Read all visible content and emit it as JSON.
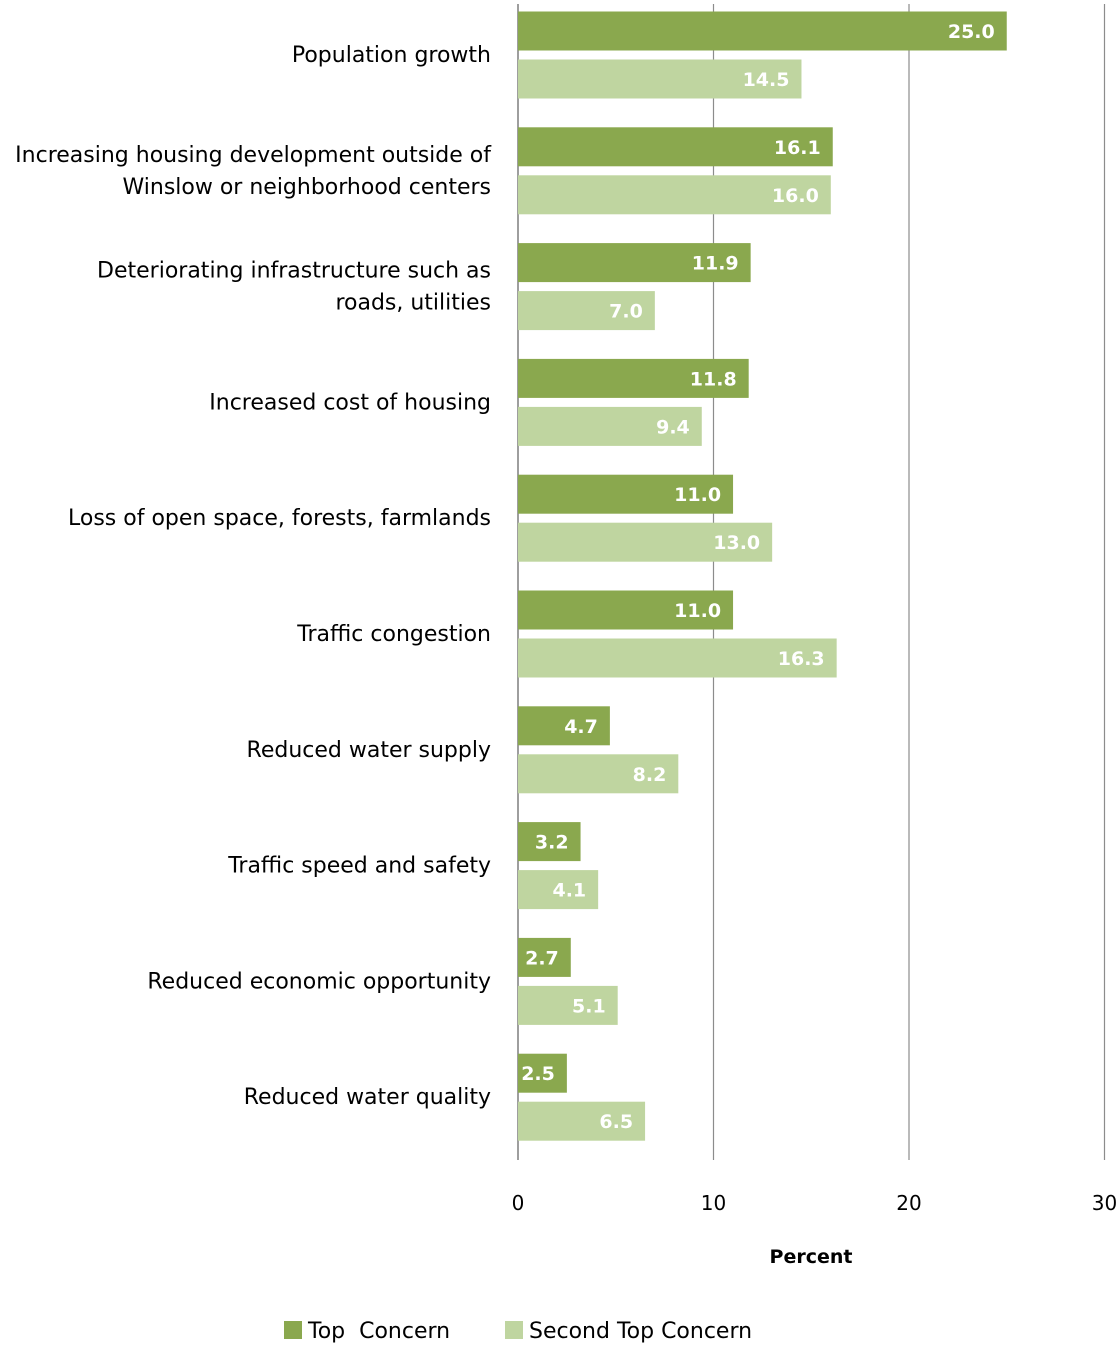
{
  "chart_data": {
    "type": "bar",
    "orientation": "horizontal",
    "categories": [
      [
        "Population growth"
      ],
      [
        "Increasing housing development outside of",
        "Winslow or neighborhood centers"
      ],
      [
        "Deteriorating infrastructure such as",
        "roads, utilities"
      ],
      [
        "Increased cost of housing"
      ],
      [
        "Loss of open space, forests, farmlands"
      ],
      [
        "Traffic congestion"
      ],
      [
        "Reduced water supply"
      ],
      [
        "Traffic speed and safety"
      ],
      [
        "Reduced economic opportunity"
      ],
      [
        "Reduced water quality"
      ]
    ],
    "series": [
      {
        "name": "Top  Concern",
        "color": "#8aa84e",
        "values": [
          25.0,
          16.1,
          11.9,
          11.8,
          11.0,
          11.0,
          4.7,
          3.2,
          2.7,
          2.5
        ]
      },
      {
        "name": "Second Top Concern",
        "color": "#bfd5a0",
        "values": [
          14.5,
          16.0,
          7.0,
          9.4,
          13.0,
          16.3,
          8.2,
          4.1,
          5.1,
          6.5
        ]
      }
    ],
    "xlabel": "Percent",
    "ylabel": "",
    "xlim": [
      0,
      30
    ],
    "xticks": [
      0,
      10,
      20,
      30
    ],
    "grid": "vertical",
    "legend_position": "bottom",
    "data_label_color": "#ffffff"
  }
}
